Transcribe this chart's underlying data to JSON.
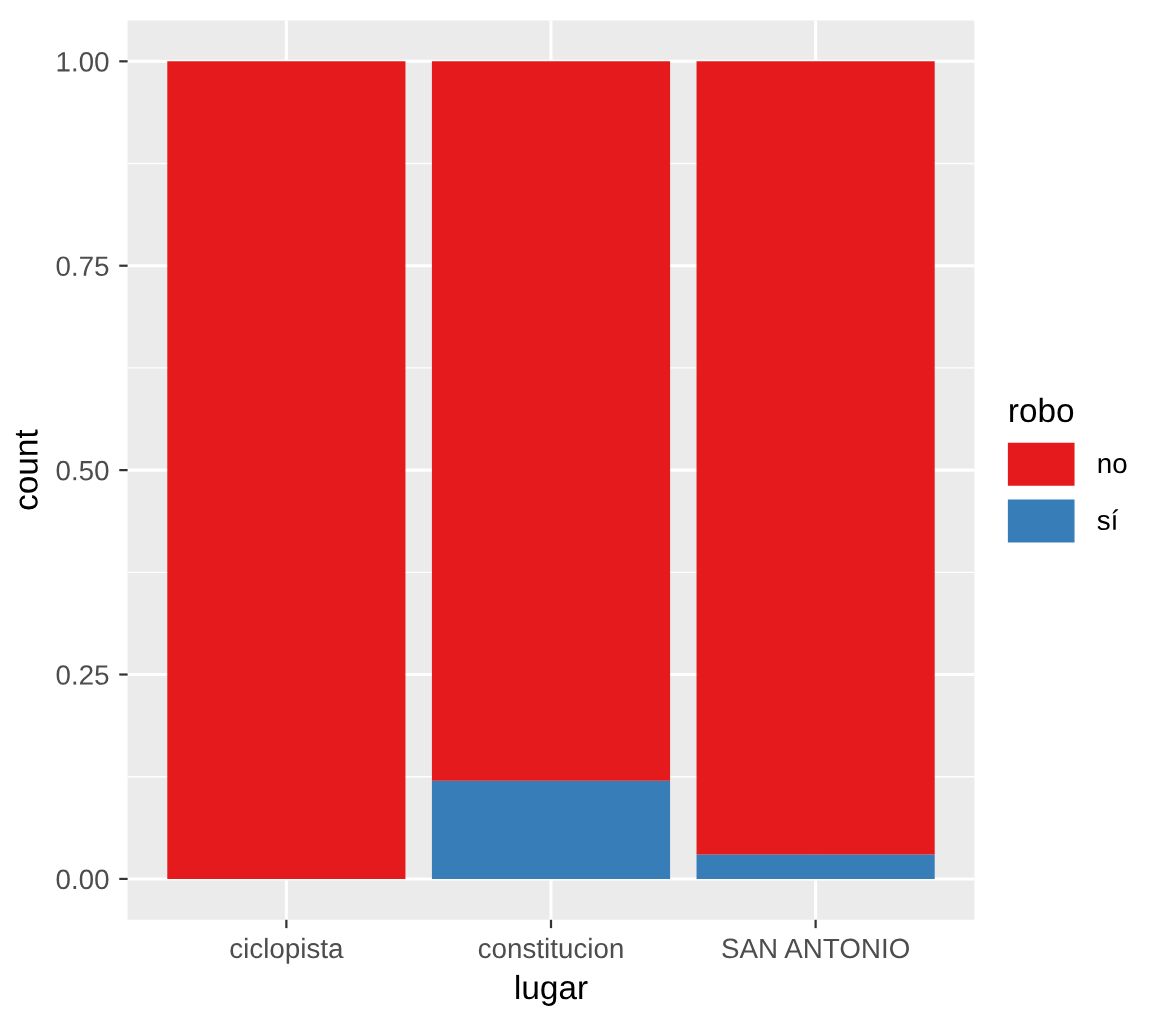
{
  "chart_data": {
    "type": "bar",
    "stacked": true,
    "xlabel": "lugar",
    "ylabel": "count",
    "legend_title": "robo",
    "categories": [
      "ciclopista",
      "constitucion",
      "SAN ANTONIO"
    ],
    "series": [
      {
        "name": "sí",
        "color": "#377eb8",
        "values": [
          0,
          0.12,
          0.03
        ]
      },
      {
        "name": "no",
        "color": "#e41a1c",
        "values": [
          1,
          0.88,
          0.97
        ]
      }
    ],
    "ylim": [
      -0.05,
      1.05
    ],
    "yticks": [
      {
        "value": 0,
        "label": "0.00"
      },
      {
        "value": 0.25,
        "label": "0.25"
      },
      {
        "value": 0.5,
        "label": "0.50"
      },
      {
        "value": 0.75,
        "label": "0.75"
      },
      {
        "value": 1,
        "label": "1.00"
      }
    ],
    "grid": true,
    "legend": "right"
  }
}
